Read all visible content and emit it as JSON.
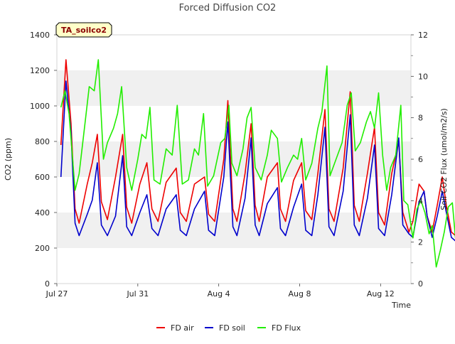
{
  "chart_data": {
    "type": "line",
    "title": "Forced Diffusion CO2",
    "site_label": "TA_soilco2",
    "xlabel": "Time",
    "ylabel_left": "CO2 (ppm)",
    "ylabel_right": "Soil CO2 Flux (umol/m2/s)",
    "x_range_days": [
      0,
      17.5
    ],
    "x_ticks": [
      {
        "day": 0,
        "label": "Jul 27"
      },
      {
        "day": 4,
        "label": "Jul 31"
      },
      {
        "day": 8,
        "label": "Aug 4"
      },
      {
        "day": 12,
        "label": "Aug 8"
      },
      {
        "day": 16,
        "label": "Aug 12"
      }
    ],
    "ylim_left": [
      0,
      1400
    ],
    "yticks_left": [
      "0",
      "200",
      "400",
      "600",
      "800",
      "1000",
      "1200",
      "1400"
    ],
    "ylim_right": [
      0,
      12
    ],
    "yticks_right": [
      "0",
      "2",
      "4",
      "6",
      "8",
      "10",
      "12"
    ],
    "bands": [
      [
        200,
        400
      ],
      [
        600,
        800
      ],
      [
        1000,
        1200
      ]
    ],
    "legend_position": "bottom",
    "series": [
      {
        "name": "FD air",
        "color": "#ee0000",
        "axis": "left",
        "points": [
          [
            0.2,
            780
          ],
          [
            0.45,
            1260
          ],
          [
            0.7,
            900
          ],
          [
            0.9,
            420
          ],
          [
            1.1,
            340
          ],
          [
            1.5,
            560
          ],
          [
            1.75,
            680
          ],
          [
            2.0,
            840
          ],
          [
            2.2,
            460
          ],
          [
            2.5,
            360
          ],
          [
            2.9,
            600
          ],
          [
            3.25,
            840
          ],
          [
            3.45,
            430
          ],
          [
            3.7,
            340
          ],
          [
            4.1,
            560
          ],
          [
            4.45,
            680
          ],
          [
            4.7,
            420
          ],
          [
            5.0,
            350
          ],
          [
            5.4,
            570
          ],
          [
            5.9,
            650
          ],
          [
            6.1,
            400
          ],
          [
            6.4,
            350
          ],
          [
            6.8,
            560
          ],
          [
            7.3,
            600
          ],
          [
            7.5,
            390
          ],
          [
            7.8,
            350
          ],
          [
            8.25,
            700
          ],
          [
            8.45,
            1030
          ],
          [
            8.7,
            420
          ],
          [
            8.9,
            350
          ],
          [
            9.3,
            620
          ],
          [
            9.6,
            900
          ],
          [
            9.8,
            440
          ],
          [
            10.0,
            350
          ],
          [
            10.4,
            600
          ],
          [
            10.9,
            680
          ],
          [
            11.05,
            420
          ],
          [
            11.3,
            350
          ],
          [
            11.7,
            580
          ],
          [
            12.1,
            680
          ],
          [
            12.3,
            410
          ],
          [
            12.6,
            360
          ],
          [
            12.9,
            620
          ],
          [
            13.25,
            980
          ],
          [
            13.45,
            420
          ],
          [
            13.7,
            350
          ],
          [
            14.15,
            650
          ],
          [
            14.5,
            1080
          ],
          [
            14.7,
            440
          ],
          [
            14.95,
            350
          ],
          [
            15.35,
            620
          ],
          [
            15.7,
            880
          ],
          [
            15.9,
            400
          ],
          [
            16.2,
            330
          ],
          [
            16.55,
            620
          ],
          [
            16.9,
            800
          ],
          [
            17.1,
            400
          ],
          [
            17.4,
            290
          ],
          [
            17.6,
            350
          ],
          [
            17.9,
            560
          ],
          [
            18.15,
            520
          ],
          [
            18.3,
            380
          ],
          [
            18.55,
            290
          ],
          [
            18.8,
            440
          ],
          [
            19.05,
            600
          ],
          [
            19.25,
            440
          ],
          [
            19.5,
            290
          ],
          [
            19.7,
            270
          ],
          [
            19.95,
            460
          ],
          [
            20.15,
            490
          ]
        ]
      },
      {
        "name": "FD soil",
        "color": "#0000cc",
        "axis": "left",
        "points": [
          [
            0.2,
            600
          ],
          [
            0.45,
            1140
          ],
          [
            0.7,
            850
          ],
          [
            0.9,
            340
          ],
          [
            1.1,
            270
          ],
          [
            1.5,
            390
          ],
          [
            1.75,
            470
          ],
          [
            2.0,
            680
          ],
          [
            2.2,
            330
          ],
          [
            2.5,
            270
          ],
          [
            2.9,
            380
          ],
          [
            3.25,
            720
          ],
          [
            3.45,
            320
          ],
          [
            3.7,
            270
          ],
          [
            4.1,
            400
          ],
          [
            4.45,
            500
          ],
          [
            4.7,
            310
          ],
          [
            5.0,
            270
          ],
          [
            5.4,
            420
          ],
          [
            5.9,
            500
          ],
          [
            6.1,
            300
          ],
          [
            6.4,
            270
          ],
          [
            6.8,
            420
          ],
          [
            7.3,
            520
          ],
          [
            7.5,
            300
          ],
          [
            7.8,
            270
          ],
          [
            8.25,
            600
          ],
          [
            8.45,
            910
          ],
          [
            8.7,
            320
          ],
          [
            8.9,
            270
          ],
          [
            9.3,
            480
          ],
          [
            9.6,
            820
          ],
          [
            9.8,
            330
          ],
          [
            10.0,
            270
          ],
          [
            10.4,
            450
          ],
          [
            10.9,
            540
          ],
          [
            11.05,
            310
          ],
          [
            11.3,
            270
          ],
          [
            11.7,
            430
          ],
          [
            12.1,
            560
          ],
          [
            12.3,
            300
          ],
          [
            12.6,
            270
          ],
          [
            12.9,
            500
          ],
          [
            13.25,
            880
          ],
          [
            13.45,
            320
          ],
          [
            13.7,
            270
          ],
          [
            14.15,
            520
          ],
          [
            14.5,
            950
          ],
          [
            14.7,
            330
          ],
          [
            14.95,
            270
          ],
          [
            15.35,
            480
          ],
          [
            15.7,
            780
          ],
          [
            15.9,
            310
          ],
          [
            16.2,
            270
          ],
          [
            16.55,
            500
          ],
          [
            16.9,
            820
          ],
          [
            17.1,
            330
          ],
          [
            17.4,
            280
          ],
          [
            17.6,
            260
          ],
          [
            17.9,
            460
          ],
          [
            18.15,
            520
          ],
          [
            18.3,
            380
          ],
          [
            18.55,
            260
          ],
          [
            18.8,
            380
          ],
          [
            19.05,
            520
          ],
          [
            19.25,
            400
          ],
          [
            19.5,
            260
          ],
          [
            19.7,
            240
          ],
          [
            19.95,
            440
          ],
          [
            20.15,
            440
          ]
        ]
      },
      {
        "name": "FD Flux",
        "color": "#22ee00",
        "axis": "right",
        "points": [
          [
            0.2,
            8.5
          ],
          [
            0.4,
            9.3
          ],
          [
            0.6,
            8.2
          ],
          [
            0.9,
            4.5
          ],
          [
            1.1,
            5.3
          ],
          [
            1.4,
            7.8
          ],
          [
            1.6,
            9.5
          ],
          [
            1.85,
            9.3
          ],
          [
            2.05,
            10.8
          ],
          [
            2.3,
            6.0
          ],
          [
            2.5,
            6.8
          ],
          [
            2.8,
            7.5
          ],
          [
            3.0,
            8.2
          ],
          [
            3.2,
            9.5
          ],
          [
            3.45,
            5.6
          ],
          [
            3.7,
            4.5
          ],
          [
            4.0,
            6.0
          ],
          [
            4.2,
            7.2
          ],
          [
            4.4,
            7.0
          ],
          [
            4.6,
            8.5
          ],
          [
            4.8,
            5.0
          ],
          [
            5.1,
            4.8
          ],
          [
            5.4,
            6.5
          ],
          [
            5.7,
            6.2
          ],
          [
            5.95,
            8.6
          ],
          [
            6.2,
            4.8
          ],
          [
            6.5,
            5.0
          ],
          [
            6.8,
            6.5
          ],
          [
            7.0,
            6.2
          ],
          [
            7.25,
            8.2
          ],
          [
            7.45,
            4.7
          ],
          [
            7.75,
            5.2
          ],
          [
            8.1,
            6.8
          ],
          [
            8.3,
            7.0
          ],
          [
            8.5,
            8.6
          ],
          [
            8.65,
            5.8
          ],
          [
            8.9,
            5.2
          ],
          [
            9.2,
            6.5
          ],
          [
            9.4,
            8.0
          ],
          [
            9.6,
            8.5
          ],
          [
            9.8,
            5.6
          ],
          [
            10.1,
            5.0
          ],
          [
            10.4,
            6.2
          ],
          [
            10.6,
            7.4
          ],
          [
            10.9,
            7.0
          ],
          [
            11.1,
            4.9
          ],
          [
            11.4,
            5.6
          ],
          [
            11.7,
            6.2
          ],
          [
            11.9,
            6.0
          ],
          [
            12.1,
            7.0
          ],
          [
            12.3,
            5.0
          ],
          [
            12.6,
            5.8
          ],
          [
            12.9,
            7.5
          ],
          [
            13.1,
            8.3
          ],
          [
            13.35,
            10.5
          ],
          [
            13.5,
            5.2
          ],
          [
            13.8,
            6.0
          ],
          [
            14.1,
            6.8
          ],
          [
            14.35,
            8.6
          ],
          [
            14.55,
            9.2
          ],
          [
            14.75,
            6.4
          ],
          [
            15.0,
            6.8
          ],
          [
            15.3,
            7.8
          ],
          [
            15.5,
            8.3
          ],
          [
            15.7,
            7.5
          ],
          [
            15.9,
            9.2
          ],
          [
            16.1,
            6.2
          ],
          [
            16.3,
            4.5
          ],
          [
            16.5,
            5.6
          ],
          [
            16.75,
            6.2
          ],
          [
            17.0,
            8.6
          ],
          [
            17.15,
            4.0
          ],
          [
            17.35,
            3.8
          ],
          [
            17.6,
            2.2
          ],
          [
            17.8,
            3.6
          ],
          [
            18.0,
            4.0
          ],
          [
            18.2,
            3.4
          ],
          [
            18.4,
            2.4
          ],
          [
            18.55,
            2.8
          ],
          [
            18.75,
            0.8
          ],
          [
            18.95,
            1.6
          ],
          [
            19.15,
            2.5
          ],
          [
            19.35,
            3.7
          ],
          [
            19.55,
            3.9
          ],
          [
            19.7,
            2.2
          ],
          [
            19.85,
            2.0
          ],
          [
            20.0,
            3.4
          ],
          [
            20.15,
            2.7
          ]
        ]
      }
    ]
  }
}
